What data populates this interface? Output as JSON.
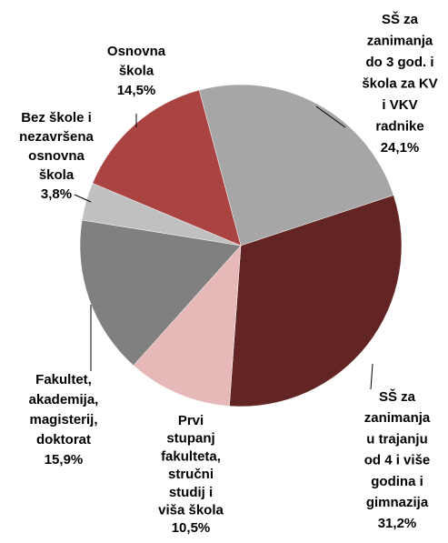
{
  "chart_data": {
    "type": "pie",
    "categories": [
      [
        "SŠ za",
        "zanimanja",
        "do 3 god. i",
        "škola za KV",
        "i VKV",
        "radnike"
      ],
      [
        "SŠ za",
        "zanimanja",
        "u trajanju",
        "od 4 i više",
        "godina i",
        "gimnazija"
      ],
      [
        "Prvi",
        "stupanj",
        "fakulteta,",
        "stručni",
        "studij i",
        "viša škola"
      ],
      [
        "Fakultet,",
        "akademija,",
        "magisterij,",
        "doktorat"
      ],
      [
        "Bez škole i",
        "nezavršena",
        "osnovna",
        "škola"
      ],
      [
        "Osnovna",
        "škola"
      ]
    ],
    "values": [
      24.1,
      31.2,
      10.5,
      15.9,
      3.8,
      14.5
    ],
    "value_labels": [
      "24,1%",
      "31,2%",
      "10,5%",
      "15,9%",
      "3,8%",
      "14,5%"
    ],
    "colors": [
      "#a6a6a6",
      "#632523",
      "#e6b9b8",
      "#808080",
      "#c0c0c0",
      "#a94442"
    ]
  }
}
